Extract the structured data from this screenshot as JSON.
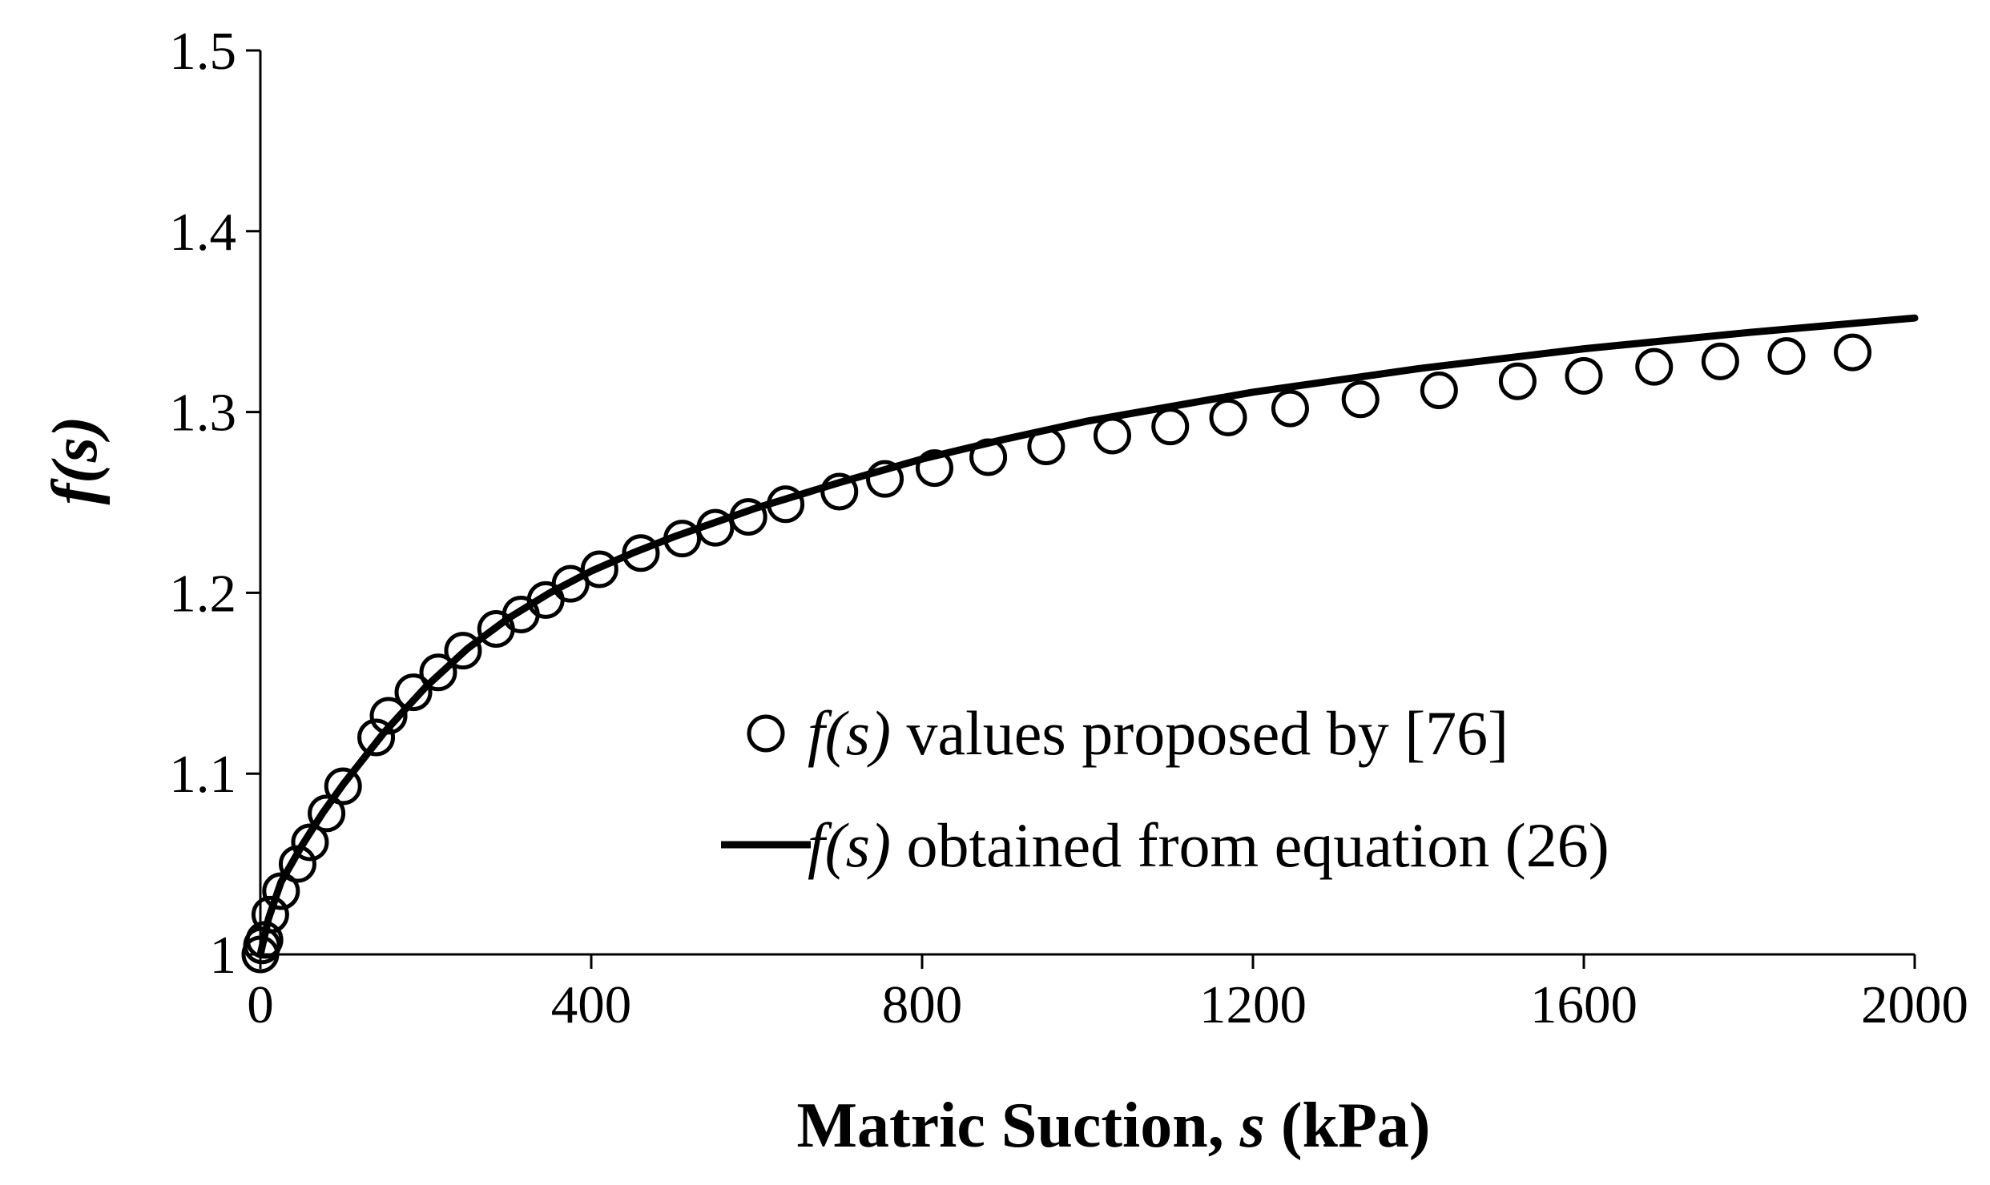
{
  "chart_data": {
    "type": "scatter",
    "xlabel": {
      "main": "Matric Suction, ",
      "var": "s",
      "unit": " (kPa)"
    },
    "ylabel": "f(s)",
    "xlim": [
      0,
      2000
    ],
    "ylim": [
      1,
      1.5
    ],
    "xticks": [
      "0",
      "400",
      "800",
      "1200",
      "1600",
      "2000"
    ],
    "yticks": [
      "1",
      "1.1",
      "1.2",
      "1.3",
      "1.4",
      "1.5"
    ],
    "xtick_values": [
      0,
      400,
      800,
      1200,
      1600,
      2000
    ],
    "ytick_values": [
      1,
      1.1,
      1.2,
      1.3,
      1.4,
      1.5
    ],
    "grid": false,
    "legend_position": "center-right",
    "colors": {
      "axis": "#000000",
      "series": "#000000"
    },
    "series": [
      {
        "marker": "open-circle",
        "legend": {
          "italic": "f(s)",
          "rest": " values proposed by [76]"
        },
        "x": [
          0,
          2,
          5,
          12,
          25,
          45,
          60,
          80,
          100,
          140,
          155,
          185,
          215,
          245,
          285,
          315,
          345,
          375,
          410,
          460,
          510,
          550,
          590,
          635,
          700,
          755,
          815,
          880,
          950,
          1030,
          1100,
          1170,
          1245,
          1330,
          1425,
          1520,
          1600,
          1685,
          1765,
          1845,
          1925
        ],
        "y": [
          1.0,
          1.005,
          1.008,
          1.022,
          1.035,
          1.05,
          1.062,
          1.078,
          1.093,
          1.12,
          1.132,
          1.145,
          1.156,
          1.168,
          1.18,
          1.188,
          1.196,
          1.205,
          1.213,
          1.222,
          1.23,
          1.236,
          1.242,
          1.249,
          1.256,
          1.263,
          1.269,
          1.275,
          1.281,
          1.287,
          1.292,
          1.297,
          1.302,
          1.307,
          1.312,
          1.317,
          1.32,
          1.325,
          1.328,
          1.331,
          1.333
        ]
      },
      {
        "marker": "line",
        "legend": {
          "italic": "f(s)",
          "rest": " obtained from equation (26)"
        },
        "x": [
          0,
          10,
          25,
          50,
          75,
          100,
          150,
          200,
          250,
          300,
          350,
          400,
          450,
          500,
          600,
          700,
          800,
          900,
          1000,
          1200,
          1400,
          1600,
          1800,
          2000
        ],
        "y": [
          1.0,
          1.02,
          1.04,
          1.06,
          1.078,
          1.094,
          1.123,
          1.148,
          1.169,
          1.186,
          1.2,
          1.212,
          1.222,
          1.231,
          1.247,
          1.261,
          1.274,
          1.285,
          1.295,
          1.311,
          1.324,
          1.335,
          1.344,
          1.352
        ]
      }
    ]
  }
}
